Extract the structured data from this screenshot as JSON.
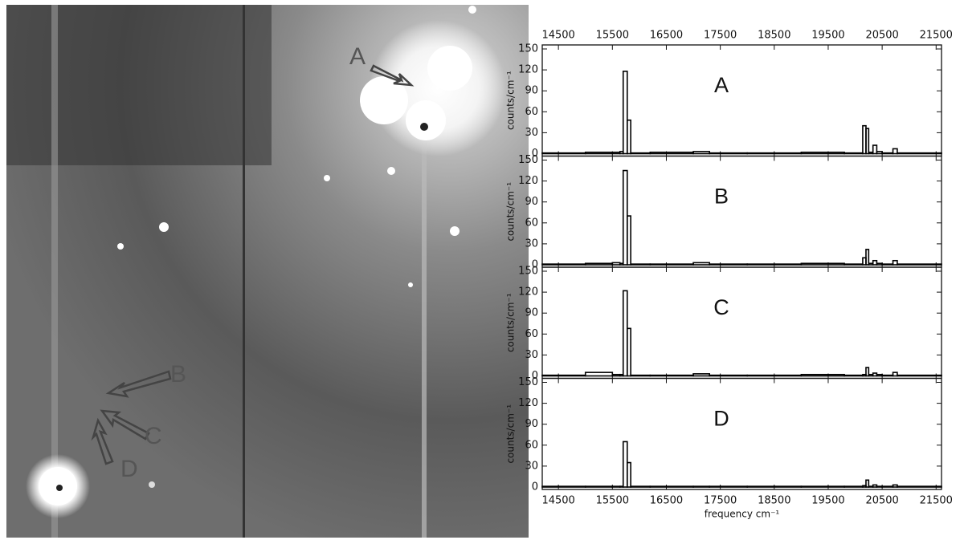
{
  "image": {
    "labels": [
      "A",
      "B",
      "C",
      "D"
    ]
  },
  "chart_data": [
    {
      "type": "histogram",
      "panel_label": "A",
      "ylabel": "counts/cm⁻¹",
      "bins": [
        14200,
        15000,
        15500,
        15640,
        15700,
        15775,
        15840,
        16200,
        17000,
        17300,
        18000,
        19000,
        19800,
        20140,
        20200,
        20250,
        20330,
        20400,
        20500,
        20700,
        20780,
        21600
      ],
      "values": [
        1,
        2,
        2,
        3,
        118,
        48,
        1,
        2,
        3,
        1,
        1,
        2,
        1,
        40,
        36,
        2,
        12,
        3,
        1,
        7,
        1
      ],
      "color": "#000000",
      "xlim": [
        14200,
        21600
      ],
      "xticks": [
        14500,
        15500,
        16500,
        17500,
        18500,
        19500,
        20500,
        21500
      ],
      "ylim": [
        0,
        150
      ],
      "yticks": [
        0,
        30,
        60,
        90,
        120,
        150
      ]
    },
    {
      "type": "histogram",
      "panel_label": "B",
      "ylabel": "counts/cm⁻¹",
      "bins": [
        14200,
        15000,
        15500,
        15640,
        15700,
        15775,
        15840,
        16200,
        17000,
        17300,
        18000,
        19000,
        19800,
        20140,
        20200,
        20250,
        20330,
        20400,
        20500,
        20700,
        20780,
        21600
      ],
      "values": [
        1,
        2,
        3,
        2,
        135,
        70,
        1,
        1,
        3,
        1,
        1,
        2,
        1,
        10,
        22,
        2,
        6,
        2,
        1,
        6,
        1
      ],
      "color": "#000000",
      "xlim": [
        14200,
        21600
      ],
      "xticks": [
        14500,
        15500,
        16500,
        17500,
        18500,
        19500,
        20500,
        21500
      ],
      "ylim": [
        0,
        150
      ],
      "yticks": [
        0,
        30,
        60,
        90,
        120,
        150
      ]
    },
    {
      "type": "histogram",
      "panel_label": "C",
      "ylabel": "counts/cm⁻¹",
      "bins": [
        14200,
        15000,
        15500,
        15640,
        15700,
        15775,
        15840,
        16200,
        17000,
        17300,
        18000,
        19000,
        19800,
        20140,
        20200,
        20250,
        20330,
        20400,
        20500,
        20700,
        20780,
        21600
      ],
      "values": [
        1,
        5,
        2,
        2,
        122,
        68,
        1,
        1,
        3,
        1,
        1,
        2,
        1,
        2,
        12,
        2,
        4,
        2,
        1,
        5,
        1
      ],
      "color": "#000000",
      "xlim": [
        14200,
        21600
      ],
      "xticks": [
        14500,
        15500,
        16500,
        17500,
        18500,
        19500,
        20500,
        21500
      ],
      "ylim": [
        0,
        150
      ],
      "yticks": [
        0,
        30,
        60,
        90,
        120,
        150
      ]
    },
    {
      "type": "histogram",
      "panel_label": "D",
      "ylabel": "counts/cm⁻¹",
      "xlabel": "frequency cm⁻¹",
      "bins": [
        14200,
        15000,
        15500,
        15640,
        15700,
        15775,
        15840,
        16200,
        17000,
        17300,
        18000,
        19000,
        19800,
        20140,
        20200,
        20250,
        20330,
        20400,
        20500,
        20700,
        20780,
        21600
      ],
      "values": [
        1,
        1,
        1,
        1,
        65,
        35,
        1,
        1,
        1,
        1,
        1,
        1,
        1,
        2,
        10,
        1,
        3,
        1,
        1,
        3,
        1
      ],
      "color": "#000000",
      "xlim": [
        14200,
        21600
      ],
      "xticks": [
        14500,
        15500,
        16500,
        17500,
        18500,
        19500,
        20500,
        21500
      ],
      "ylim": [
        0,
        150
      ],
      "yticks": [
        0,
        30,
        60,
        90,
        120,
        150
      ]
    }
  ]
}
